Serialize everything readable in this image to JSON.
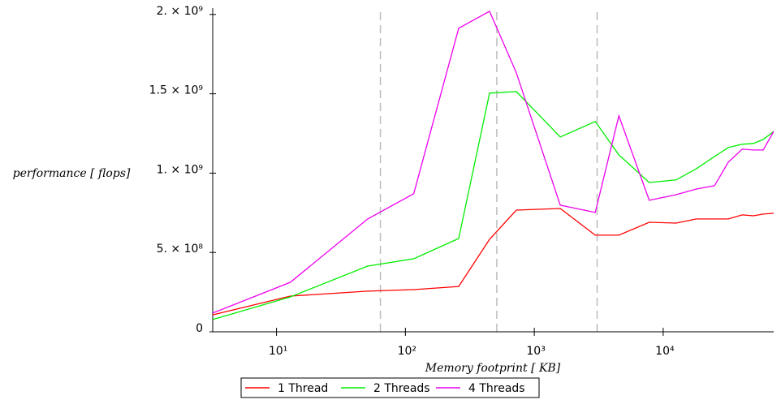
{
  "chart_data": {
    "type": "line",
    "x_label": "Memory footprint [ KB]",
    "y_label": "performance [ flops]",
    "x_scale": "log",
    "x": [
      3.2,
      12.8,
      51,
      116,
      259,
      450,
      726,
      1590,
      2970,
      4530,
      7800,
      12600,
      18100,
      25000,
      32000,
      41000,
      50100,
      59700,
      72000
    ],
    "series": [
      {
        "name": "1 Thread",
        "color": "#ff0000",
        "values": [
          107000000,
          225000000,
          256000000,
          266000000,
          286000000,
          583000000,
          767000000,
          777000000,
          609000000,
          609000000,
          690000000,
          685000000,
          711000000,
          711000000,
          711000000,
          737000000,
          731000000,
          742000000,
          747000000
        ]
      },
      {
        "name": "2 Threads",
        "color": "#00ee00",
        "values": [
          77000000,
          220000000,
          414000000,
          460000000,
          588000000,
          1504000000,
          1514000000,
          1228000000,
          1325000000,
          1115000000,
          941000000,
          957000000,
          1028000000,
          1105000000,
          1161000000,
          1182000000,
          1187000000,
          1212000000,
          1263000000
        ]
      },
      {
        "name": "4 Threads",
        "color": "#ee00ee",
        "values": [
          118000000,
          312000000,
          711000000,
          870000000,
          1913000000,
          2020000000,
          1632000000,
          798000000,
          752000000,
          1361000000,
          829000000,
          864000000,
          900000000,
          921000000,
          1069000000,
          1151000000,
          1146000000,
          1146000000,
          1263000000
        ]
      }
    ],
    "xlim": [
      3.2,
      72000
    ],
    "xticks": [
      {
        "value": 10,
        "label": "10¹"
      },
      {
        "value": 100,
        "label": "10²"
      },
      {
        "value": 1000,
        "label": "10³"
      },
      {
        "value": 10000,
        "label": "10⁴"
      }
    ],
    "ylim": [
      0,
      2040000000
    ],
    "yticks": [
      0,
      {
        "value": 500000000,
        "label": "5. × 10⁸"
      },
      {
        "value": 1000000000,
        "label": "1. × 10⁹"
      },
      {
        "value": 1500000000,
        "label": "1.5 × 10⁹"
      },
      {
        "value": 2000000000,
        "label": "2. × 10⁹"
      }
    ],
    "vlines": [
      64,
      512,
      3072
    ],
    "vline_color": "#bbbbbb",
    "legend": "bottom"
  }
}
